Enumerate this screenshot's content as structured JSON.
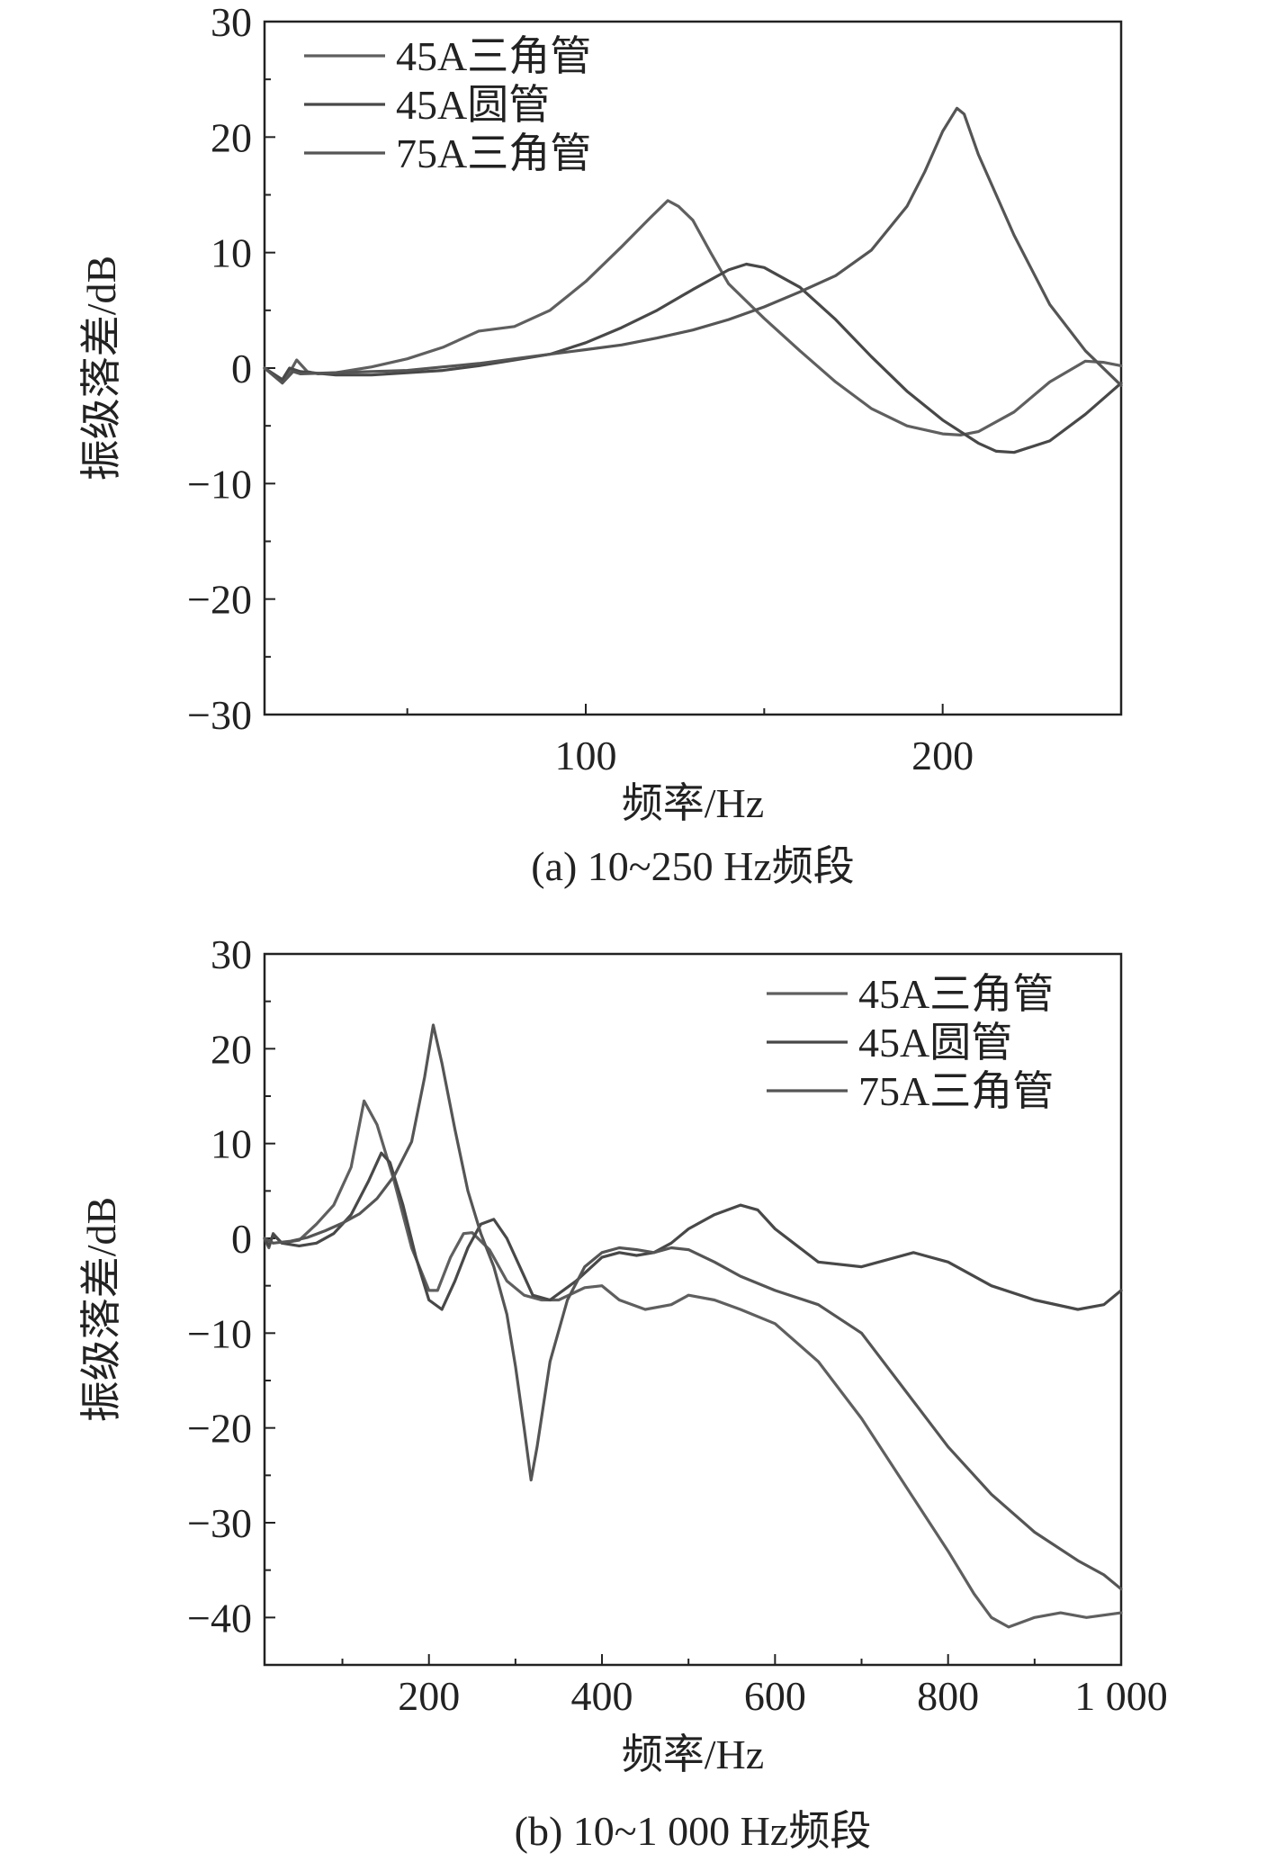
{
  "chart_data": [
    {
      "type": "line",
      "panel": "a",
      "caption": "(a) 10~250 Hz频段",
      "xlabel": "频率/Hz",
      "ylabel": "振级落差/dB",
      "xlim": [
        10,
        250
      ],
      "ylim": [
        -30,
        30
      ],
      "x_ticks": [
        100,
        200
      ],
      "x_tick_labels": [
        "100",
        "200"
      ],
      "x_minor_ticks": [
        50,
        150,
        250
      ],
      "y_ticks": [
        -30,
        -20,
        -10,
        0,
        10,
        20,
        30
      ],
      "y_tick_labels": [
        "−30",
        "−20",
        "−10",
        "0",
        "10",
        "20",
        "30"
      ],
      "legend_position": "top-left",
      "series": [
        {
          "name": "45A三角管",
          "color": "#5f5f5f",
          "x": [
            10,
            15,
            17,
            19,
            22,
            25,
            30,
            40,
            50,
            60,
            70,
            80,
            90,
            100,
            110,
            118,
            123,
            126,
            130,
            135,
            140,
            145,
            150,
            160,
            170,
            180,
            190,
            200,
            205,
            210,
            220,
            230,
            240,
            245,
            250
          ],
          "y": [
            0,
            -1.2,
            -0.4,
            0.7,
            -0.3,
            -0.5,
            -0.4,
            0.1,
            0.8,
            1.8,
            3.2,
            3.6,
            5.0,
            7.5,
            10.5,
            13.0,
            14.5,
            14.0,
            12.8,
            10.0,
            7.3,
            5.8,
            4.3,
            1.5,
            -1.2,
            -3.5,
            -5.0,
            -5.7,
            -5.8,
            -5.5,
            -3.8,
            -1.2,
            0.6,
            0.5,
            0.2
          ]
        },
        {
          "name": "45A圆管",
          "color": "#484848",
          "x": [
            10,
            15,
            17,
            20,
            30,
            40,
            50,
            60,
            70,
            80,
            90,
            100,
            110,
            120,
            130,
            140,
            145,
            150,
            160,
            170,
            180,
            190,
            200,
            210,
            215,
            220,
            230,
            240,
            250
          ],
          "y": [
            0,
            -1.0,
            0.0,
            -0.3,
            -0.6,
            -0.6,
            -0.4,
            -0.2,
            0.2,
            0.7,
            1.2,
            2.2,
            3.5,
            5.0,
            6.8,
            8.5,
            9.0,
            8.7,
            7.0,
            4.2,
            1.0,
            -2.0,
            -4.5,
            -6.5,
            -7.2,
            -7.3,
            -6.3,
            -4.0,
            -1.3
          ]
        },
        {
          "name": "75A三角管",
          "color": "#555555",
          "x": [
            10,
            15,
            18,
            20,
            30,
            40,
            50,
            60,
            70,
            80,
            90,
            100,
            110,
            120,
            130,
            140,
            150,
            160,
            170,
            180,
            190,
            195,
            200,
            204,
            206,
            210,
            220,
            230,
            240,
            250
          ],
          "y": [
            0,
            -1.3,
            -0.3,
            -0.5,
            -0.4,
            -0.3,
            -0.2,
            0.1,
            0.4,
            0.8,
            1.2,
            1.6,
            2.0,
            2.6,
            3.3,
            4.2,
            5.3,
            6.6,
            8.0,
            10.2,
            14.0,
            17.0,
            20.5,
            22.5,
            22.0,
            18.5,
            11.5,
            5.5,
            1.5,
            -1.5
          ]
        }
      ]
    },
    {
      "type": "line",
      "panel": "b",
      "caption": "(b) 10~1 000 Hz频段",
      "xlabel": "频率/Hz",
      "ylabel": "振级落差/dB",
      "xlim": [
        10,
        1000
      ],
      "ylim": [
        -45,
        30
      ],
      "x_ticks": [
        200,
        400,
        600,
        800,
        1000
      ],
      "x_tick_labels": [
        "200",
        "400",
        "600",
        "800",
        "1 000"
      ],
      "x_minor_ticks": [
        100,
        300,
        500,
        700,
        900
      ],
      "y_ticks": [
        -40,
        -30,
        -20,
        -10,
        0,
        10,
        20,
        30
      ],
      "y_tick_labels": [
        "−40",
        "−30",
        "−20",
        "−10",
        "0",
        "10",
        "20",
        "30"
      ],
      "legend_position": "top-right",
      "series": [
        {
          "name": "45A三角管",
          "color": "#5f5f5f",
          "x": [
            10,
            15,
            20,
            30,
            50,
            70,
            90,
            110,
            125,
            140,
            160,
            180,
            200,
            210,
            225,
            240,
            250,
            270,
            290,
            310,
            330,
            350,
            380,
            400,
            420,
            450,
            480,
            500,
            530,
            560,
            600,
            650,
            700,
            750,
            800,
            830,
            850,
            870,
            900,
            930,
            960,
            1000
          ],
          "y": [
            0,
            -1.0,
            0.5,
            -0.5,
            -0.2,
            1.5,
            3.5,
            7.5,
            14.5,
            12.0,
            6.0,
            -1.0,
            -5.5,
            -5.5,
            -2.0,
            0.5,
            0.6,
            -1.2,
            -4.5,
            -6.0,
            -6.5,
            -6.5,
            -5.2,
            -5.0,
            -6.5,
            -7.5,
            -7.0,
            -6.0,
            -6.5,
            -7.5,
            -9.0,
            -13.0,
            -19.0,
            -26.0,
            -33.0,
            -37.5,
            -40.0,
            -41.0,
            -40.0,
            -39.5,
            -40.0,
            -39.5
          ]
        },
        {
          "name": "45A圆管",
          "color": "#484848",
          "x": [
            10,
            15,
            20,
            30,
            50,
            70,
            90,
            110,
            130,
            145,
            155,
            170,
            185,
            200,
            215,
            230,
            245,
            260,
            275,
            290,
            305,
            320,
            340,
            370,
            400,
            420,
            440,
            460,
            480,
            500,
            530,
            560,
            580,
            600,
            650,
            700,
            760,
            800,
            850,
            900,
            950,
            980,
            1000
          ],
          "y": [
            0,
            -0.8,
            0.4,
            -0.5,
            -0.8,
            -0.5,
            0.5,
            2.5,
            6.0,
            9.0,
            8.0,
            3.5,
            -2.0,
            -6.5,
            -7.5,
            -4.5,
            -1.0,
            1.5,
            2.0,
            0.0,
            -3.0,
            -6.0,
            -6.5,
            -4.5,
            -2.0,
            -1.5,
            -1.8,
            -1.5,
            -0.5,
            1.0,
            2.5,
            3.5,
            3.0,
            1.0,
            -2.5,
            -3.0,
            -1.5,
            -2.5,
            -5.0,
            -6.5,
            -7.5,
            -7.0,
            -5.5
          ]
        },
        {
          "name": "75A三角管",
          "color": "#555555",
          "x": [
            10,
            20,
            40,
            60,
            80,
            100,
            120,
            140,
            160,
            180,
            195,
            205,
            215,
            230,
            245,
            260,
            275,
            290,
            300,
            310,
            318,
            325,
            340,
            360,
            380,
            400,
            420,
            440,
            460,
            480,
            500,
            530,
            560,
            600,
            650,
            700,
            750,
            800,
            850,
            900,
            950,
            980,
            1000
          ],
          "y": [
            0,
            -0.5,
            -0.3,
            0.1,
            0.8,
            1.6,
            2.6,
            4.2,
            6.6,
            10.2,
            17.0,
            22.5,
            18.5,
            11.5,
            5.0,
            0.5,
            -3.0,
            -8.0,
            -13.5,
            -20.0,
            -25.5,
            -22.0,
            -13.0,
            -6.5,
            -3.0,
            -1.5,
            -1.0,
            -1.2,
            -1.5,
            -1.0,
            -1.2,
            -2.5,
            -4.0,
            -5.5,
            -7.0,
            -10.0,
            -16.0,
            -22.0,
            -27.0,
            -31.0,
            -34.0,
            -35.5,
            -37.0
          ]
        }
      ]
    }
  ]
}
